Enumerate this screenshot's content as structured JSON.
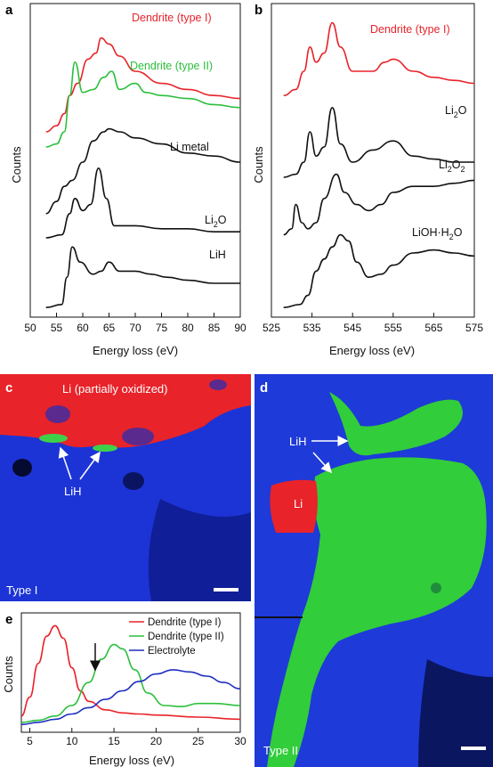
{
  "figure": {
    "panel_labels": {
      "a": "a",
      "b": "b",
      "c": "c",
      "d": "d",
      "e": "e"
    },
    "colors": {
      "red": "#e8232a",
      "green": "#2bbf3c",
      "blue": "#1f2fbf",
      "black": "#111111"
    }
  },
  "chart_data": [
    {
      "panel": "a",
      "type": "line",
      "xlabel": "Energy loss (eV)",
      "ylabel": "Counts",
      "xlim": [
        50,
        90
      ],
      "xticks": [
        "50",
        "55",
        "60",
        "65",
        "70",
        "75",
        "80",
        "85",
        "90"
      ],
      "series": [
        {
          "name": "Dendrite (type I)",
          "color": "#e8232a",
          "x": [
            53,
            55,
            56.5,
            57.5,
            59,
            61,
            62.5,
            63.5,
            65,
            67,
            70,
            75,
            80,
            85,
            90
          ],
          "y": [
            0.6,
            0.62,
            0.66,
            0.72,
            0.76,
            0.84,
            0.86,
            0.91,
            0.89,
            0.85,
            0.8,
            0.76,
            0.74,
            0.72,
            0.71
          ]
        },
        {
          "name": "Dendrite (type II)",
          "color": "#2bbf3c",
          "x": [
            53,
            55,
            56.5,
            57.5,
            58.5,
            60,
            62,
            64,
            65.5,
            67,
            70,
            72,
            75,
            80,
            85,
            90
          ],
          "y": [
            0.55,
            0.56,
            0.6,
            0.72,
            0.83,
            0.73,
            0.74,
            0.78,
            0.8,
            0.74,
            0.76,
            0.73,
            0.72,
            0.71,
            0.69,
            0.68
          ]
        },
        {
          "name": "Li metal",
          "color": "#111111",
          "x": [
            53,
            55,
            56.5,
            58,
            60,
            62,
            64,
            65,
            67,
            70,
            75,
            80,
            85,
            90
          ],
          "y": [
            0.33,
            0.37,
            0.42,
            0.44,
            0.5,
            0.57,
            0.6,
            0.61,
            0.6,
            0.58,
            0.56,
            0.53,
            0.52,
            0.5
          ]
        },
        {
          "name": "Li2O",
          "color": "#111111",
          "x": [
            53,
            56,
            57.5,
            58.5,
            60,
            61.5,
            63,
            64.5,
            66,
            70,
            75,
            80,
            85,
            90
          ],
          "y": [
            0.25,
            0.26,
            0.33,
            0.38,
            0.34,
            0.36,
            0.48,
            0.38,
            0.29,
            0.29,
            0.28,
            0.28,
            0.27,
            0.27
          ]
        },
        {
          "name": "LiH",
          "color": "#111111",
          "x": [
            53,
            56,
            57,
            58,
            59.5,
            62,
            63.5,
            65,
            67,
            70,
            73,
            76,
            80,
            85,
            90
          ],
          "y": [
            0.02,
            0.03,
            0.12,
            0.22,
            0.17,
            0.13,
            0.14,
            0.17,
            0.14,
            0.14,
            0.13,
            0.12,
            0.11,
            0.1,
            0.1
          ]
        }
      ]
    },
    {
      "panel": "b",
      "type": "line",
      "xlabel": "Energy loss (eV)",
      "ylabel": "Counts",
      "xlim": [
        525,
        575
      ],
      "xticks": [
        "525",
        "535",
        "545",
        "555",
        "565",
        "575"
      ],
      "series": [
        {
          "name": "Dendrite (type I)",
          "color": "#e8232a",
          "x": [
            528,
            531,
            533,
            534.5,
            536,
            538,
            540,
            542,
            545,
            550,
            553,
            555,
            560,
            565,
            570,
            575
          ],
          "y": [
            0.72,
            0.74,
            0.8,
            0.88,
            0.83,
            0.86,
            0.96,
            0.88,
            0.8,
            0.8,
            0.83,
            0.84,
            0.8,
            0.78,
            0.77,
            0.76
          ]
        },
        {
          "name": "Li2O",
          "color": "#111111",
          "x": [
            528,
            531,
            533,
            534.5,
            536,
            538,
            540,
            542,
            545,
            550,
            555,
            560,
            565,
            570,
            575
          ],
          "y": [
            0.45,
            0.46,
            0.5,
            0.6,
            0.52,
            0.55,
            0.68,
            0.56,
            0.5,
            0.54,
            0.57,
            0.52,
            0.51,
            0.5,
            0.5
          ]
        },
        {
          "name": "Li2O2",
          "color": "#111111",
          "x": [
            528,
            530,
            531,
            532.5,
            534,
            536,
            538,
            541,
            543,
            546,
            549,
            552,
            555,
            560,
            565,
            570,
            575
          ],
          "y": [
            0.26,
            0.28,
            0.36,
            0.3,
            0.28,
            0.3,
            0.38,
            0.46,
            0.4,
            0.36,
            0.34,
            0.36,
            0.4,
            0.42,
            0.42,
            0.43,
            0.44
          ]
        },
        {
          "name": "LiOH·H2O",
          "color": "#111111",
          "x": [
            528,
            532,
            534,
            536,
            538,
            540,
            542,
            544,
            546,
            549,
            552,
            555,
            560,
            565,
            570,
            575
          ],
          "y": [
            0.02,
            0.03,
            0.06,
            0.14,
            0.18,
            0.22,
            0.26,
            0.24,
            0.17,
            0.12,
            0.13,
            0.16,
            0.2,
            0.21,
            0.2,
            0.19
          ]
        }
      ]
    },
    {
      "panel": "e",
      "type": "line",
      "xlabel": "Energy loss (eV)",
      "ylabel": "Counts",
      "xlim": [
        4,
        30
      ],
      "xticks": [
        "5",
        "10",
        "15",
        "20",
        "25",
        "30"
      ],
      "series": [
        {
          "name": "Dendrite (type I)",
          "color": "#e8232a",
          "x": [
            4,
            5,
            6,
            7,
            8,
            9,
            10,
            11,
            12,
            14,
            16,
            18,
            20,
            25,
            30
          ],
          "y": [
            0.12,
            0.3,
            0.62,
            0.88,
            0.98,
            0.86,
            0.58,
            0.36,
            0.26,
            0.18,
            0.15,
            0.14,
            0.13,
            0.11,
            0.09
          ]
        },
        {
          "name": "Dendrite (type II)",
          "color": "#2bbf3c",
          "x": [
            4,
            6,
            8,
            10,
            12,
            13.5,
            15,
            16,
            17.5,
            19,
            21,
            23,
            25,
            27,
            30
          ],
          "y": [
            0.06,
            0.08,
            0.12,
            0.22,
            0.44,
            0.66,
            0.8,
            0.76,
            0.56,
            0.34,
            0.22,
            0.21,
            0.24,
            0.24,
            0.22
          ]
        },
        {
          "name": "Electrolyte",
          "color": "#1f2fbf",
          "x": [
            4,
            6,
            8,
            10,
            12,
            14,
            16,
            18,
            20,
            22,
            24,
            26,
            28,
            30
          ],
          "y": [
            0.04,
            0.06,
            0.09,
            0.14,
            0.2,
            0.28,
            0.36,
            0.45,
            0.52,
            0.56,
            0.54,
            0.5,
            0.44,
            0.38
          ]
        }
      ],
      "annotation": "arrow at 12.5 eV"
    }
  ],
  "panel_a": {
    "curve_labels": {
      "type1": "Dendrite (type I)",
      "type2": "Dendrite (type II)",
      "limetal": "Li metal",
      "li2o": "Li",
      "li2o_sub": "2",
      "li2o_end": "O",
      "lih": "LiH"
    }
  },
  "panel_b": {
    "curve_labels": {
      "type1": "Dendrite (type I)",
      "li2o": "Li",
      "li2o_sub": "2",
      "li2o_end": "O",
      "li2o2": "Li",
      "li2o2_sub1": "2",
      "li2o2_mid": "O",
      "li2o2_sub2": "2",
      "lioh": "LiOH·H",
      "lioh_sub": "2",
      "lioh_end": "O"
    }
  },
  "panel_c": {
    "title": "Li (partially oxidized)",
    "arrow_label": "LiH",
    "type_label": "Type I"
  },
  "panel_d": {
    "lih_label": "LiH",
    "li_label": "Li",
    "type_label": "Type II"
  },
  "panel_e": {
    "legend": [
      "Dendrite (type I)",
      "Dendrite (type II)",
      "Electrolyte"
    ]
  }
}
